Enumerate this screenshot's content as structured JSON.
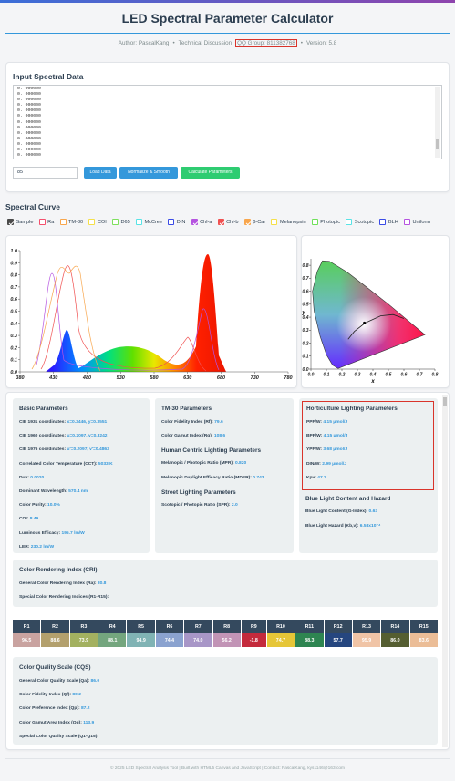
{
  "header": {
    "title": "LED Spectral Parameter Calculator",
    "author": "Author: PascalKang",
    "separator": "•",
    "discussion": "Technical Discussion",
    "qq_group": "QQ Group: 811382768",
    "version": "Version: 5.8"
  },
  "input": {
    "title": "Input Spectral Data",
    "lines": [
      "0. 000000",
      "0. 000000",
      "0. 000000",
      "0. 000000",
      "0. 000000",
      "0. 000000",
      "0. 000000",
      "0. 000000",
      "0. 000000",
      "0. 000000",
      "0. 000000",
      "0. 000000",
      "0. 000000"
    ],
    "field_value": "85",
    "buttons": [
      {
        "label": "Load Data",
        "color": "#3498db"
      },
      {
        "label": "Normalize & Smooth",
        "color": "#3498db"
      },
      {
        "label": "Calculate Parameters",
        "color": "#2ecc71"
      }
    ]
  },
  "spectral_curve": {
    "title": "Spectral Curve",
    "legend": [
      {
        "label": "Sample",
        "color": "#4a4a4a",
        "checked": true
      },
      {
        "label": "Ra",
        "color": "#f4506e",
        "checked": false
      },
      {
        "label": "TM-30",
        "color": "#f8a64d",
        "checked": false
      },
      {
        "label": "COI",
        "color": "#f5e04a",
        "checked": false
      },
      {
        "label": "D65",
        "color": "#7ee05e",
        "checked": false
      },
      {
        "label": "McCree",
        "color": "#58e3e6",
        "checked": false
      },
      {
        "label": "DIN",
        "color": "#3a4be6",
        "checked": false
      },
      {
        "label": "Chl-a",
        "color": "#b553e0",
        "checked": true
      },
      {
        "label": "Chl-b",
        "color": "#f05050",
        "checked": true
      },
      {
        "label": "β-Car",
        "color": "#f8a64d",
        "checked": true
      },
      {
        "label": "Melanopsin",
        "color": "#f5e04a",
        "checked": false
      },
      {
        "label": "Photopic",
        "color": "#6fe05a",
        "checked": false
      },
      {
        "label": "Scotopic",
        "color": "#58e3e6",
        "checked": false
      },
      {
        "label": "BLH",
        "color": "#3a4be6",
        "checked": false
      },
      {
        "label": "Uniform",
        "color": "#b553e0",
        "checked": false
      }
    ],
    "chart": {
      "xlim": [
        380,
        780
      ],
      "xticks": [
        380,
        430,
        480,
        530,
        580,
        630,
        680,
        730,
        780
      ],
      "ylim": [
        0,
        1
      ],
      "yticks": [
        {
          "value": 0,
          "label": "0.0"
        },
        {
          "value": 0.1,
          "label": "0.1"
        },
        {
          "value": 0.2,
          "label": "0.2"
        },
        {
          "value": 0.3,
          "label": "0.3"
        },
        {
          "value": 0.4,
          "label": "0.4"
        },
        {
          "value": 0.5,
          "label": "0.5"
        },
        {
          "value": 0.6,
          "label": "0.6"
        },
        {
          "value": 0.7,
          "label": "0.7"
        },
        {
          "value": 0.8,
          "label": "0.8"
        },
        {
          "value": 0.9,
          "label": "0.9"
        },
        {
          "value": 1,
          "label": "1.0"
        }
      ]
    },
    "cie": {
      "xlabel": "x",
      "ylabel": "y",
      "xlim": [
        0,
        0.8
      ],
      "ylim": [
        0,
        0.85
      ],
      "xticks": [
        {
          "value": 0,
          "label": "0.0"
        },
        {
          "value": 0.1,
          "label": "0.1"
        },
        {
          "value": 0.2,
          "label": "0.2"
        },
        {
          "value": 0.3,
          "label": "0.3"
        },
        {
          "value": 0.4,
          "label": "0.4"
        },
        {
          "value": 0.5,
          "label": "0.5"
        },
        {
          "value": 0.6,
          "label": "0.6"
        },
        {
          "value": 0.7,
          "label": "0.7"
        },
        {
          "value": 0.8,
          "label": "0.8"
        }
      ],
      "yticks": [
        {
          "value": 0,
          "label": "0.0"
        },
        {
          "value": 0.1,
          "label": "0.1"
        },
        {
          "value": 0.2,
          "label": "0.2"
        },
        {
          "value": 0.3,
          "label": "0.3"
        },
        {
          "value": 0.4,
          "label": "0.4"
        },
        {
          "value": 0.5,
          "label": "0.5"
        },
        {
          "value": 0.6,
          "label": "0.6"
        },
        {
          "value": 0.7,
          "label": "0.7"
        },
        {
          "value": 0.8,
          "label": "0.8"
        }
      ]
    }
  },
  "results": {
    "basic": {
      "title": "Basic Parameters",
      "items": [
        {
          "label": "CIE 1931 coordinates:",
          "value": "x=0.3446, y=0.3551"
        },
        {
          "label": "CIE 1960 coordinates:",
          "value": "u=0.2097, v=0.3242"
        },
        {
          "label": "CIE 1976 coordinates:",
          "value": "u'=0.2097, v'=0.4863"
        },
        {
          "label": "Correlated Color Temperature (CCT):",
          "value": "5033 K"
        },
        {
          "label": "Duv:",
          "value": "0.0020"
        },
        {
          "label": "Dominant Wavelength:",
          "value": "570.4 nm"
        },
        {
          "label": "Color Purity:",
          "value": "10.0%"
        },
        {
          "label": "COI:",
          "value": "8.49"
        },
        {
          "label": "Luminous Efficacy:",
          "value": "195.7 lm/W"
        },
        {
          "label": "LER:",
          "value": "230.2 lm/W"
        }
      ]
    },
    "tm30": {
      "title": "TM-30 Parameters",
      "items": [
        {
          "label": "Color Fidelity Index (Rf):",
          "value": "79.6"
        },
        {
          "label": "Color Gamut Index (Rg):",
          "value": "108.6"
        }
      ]
    },
    "hcl": {
      "title": "Human Centric Lighting Parameters",
      "items": [
        {
          "label": "Melanopic / Photopic Ratio (MPR):",
          "value": "0.820"
        },
        {
          "label": "Melanopic Daylight Efficacy Ratio (MDER):",
          "value": "0.743"
        }
      ]
    },
    "street": {
      "title": "Street Lighting Parameters",
      "items": [
        {
          "label": "Scotopic / Photopic Ratio (SPR):",
          "value": "2.0"
        }
      ]
    },
    "horticulture": {
      "title": "Horticulture Lighting Parameters",
      "items": [
        {
          "label": "PPF/W:",
          "value": "4.15 μmol/J"
        },
        {
          "label": "BPF/W:",
          "value": "4.15 μmol/J"
        },
        {
          "label": "YPF/W:",
          "value": "3.68 μmol/J"
        },
        {
          "label": "DIN/W:",
          "value": "2.99 μmol/J"
        },
        {
          "label": "Kpv:",
          "value": "47.2"
        }
      ]
    },
    "blue_light": {
      "title": "Blue Light Content and Hazard",
      "items": [
        {
          "label": "Blue Light Content (G-Index):",
          "value": "0.63"
        },
        {
          "label": "Blue Light Hazard (Kb,v):",
          "value": "6.58x10⁻⁴"
        }
      ]
    }
  },
  "cri": {
    "title": "Color Rendering Index (CRI)",
    "items": [
      {
        "label": "General Color Rendering Index (Ra):",
        "value": "80.8"
      },
      {
        "label": "Special Color Rendering Indices (R1-R15):",
        "value": ""
      }
    ],
    "table": {
      "headers": [
        "R1",
        "R2",
        "R3",
        "R4",
        "R5",
        "R6",
        "R7",
        "R8",
        "R9",
        "R10",
        "R11",
        "R12",
        "R13",
        "R14",
        "R15"
      ],
      "values": [
        "96.5",
        "88.6",
        "73.9",
        "88.1",
        "94.9",
        "74.4",
        "74.0",
        "56.2",
        "-1.8",
        "74.7",
        "88.3",
        "57.7",
        "95.9",
        "86.0",
        "83.6"
      ],
      "colors": [
        "#c9a3a0",
        "#b3a06d",
        "#a3b160",
        "#74a67e",
        "#80b3b4",
        "#8aa2cf",
        "#a896c7",
        "#c294b6",
        "#c42a3c",
        "#e6c637",
        "#2e8551",
        "#25467f",
        "#f0c4a6",
        "#555e31",
        "#ebbd97"
      ]
    }
  },
  "cqs": {
    "title": "Color Quality Scale (CQS)",
    "items": [
      {
        "label": "General Color Quality Scale (Qa):",
        "value": "86.0"
      },
      {
        "label": "Color Fidelity Index (Qf):",
        "value": "80.2"
      },
      {
        "label": "Color Preference Index (Qp):",
        "value": "87.2"
      },
      {
        "label": "Color Gamut Area Index (Qg):",
        "value": "113.9"
      },
      {
        "label": "Special Color Quality Scale (Q1-Q15):",
        "value": ""
      }
    ]
  },
  "footer": "© 2025 LED Spectral Analysis Tool | Built with HTML5 Canvas and JavaScript | Contact: PascalKang, kys1146@163.com"
}
